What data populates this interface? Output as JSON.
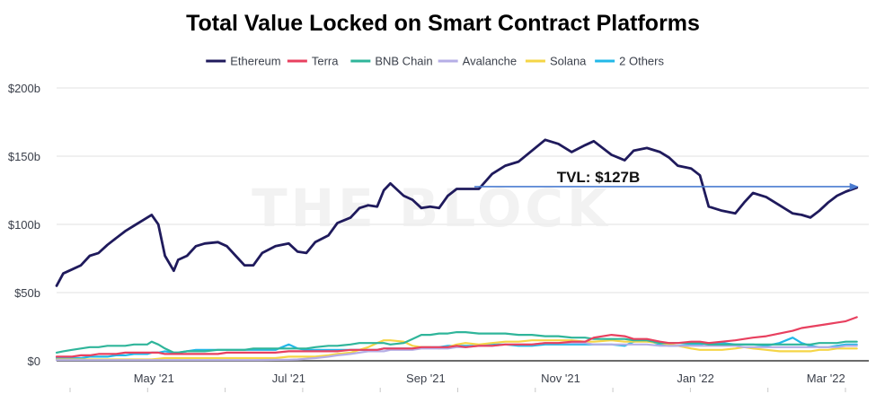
{
  "chart_data": {
    "type": "line",
    "title": "Total Value Locked on Smart Contract Platforms",
    "xlabel": "",
    "ylabel": "",
    "x_range": [
      "2021-04-01",
      "2022-04-03"
    ],
    "ylim": [
      0,
      200
    ],
    "y_ticks": [
      {
        "value": 0,
        "label": "$0"
      },
      {
        "value": 50,
        "label": "$50b"
      },
      {
        "value": 100,
        "label": "$100b"
      },
      {
        "value": 150,
        "label": "$150b"
      },
      {
        "value": 200,
        "label": "$200b"
      }
    ],
    "x_ticks": [
      {
        "date": "2021-05-15",
        "label": "May '21"
      },
      {
        "date": "2021-07-15",
        "label": "Jul '21"
      },
      {
        "date": "2021-09-15",
        "label": "Sep '21"
      },
      {
        "date": "2021-11-15",
        "label": "Nov '21"
      },
      {
        "date": "2022-01-15",
        "label": "Jan '22"
      },
      {
        "date": "2022-03-15",
        "label": "Mar '22"
      }
    ],
    "grid": true,
    "legend_position": "top-center",
    "watermark": "THE BLOCK",
    "annotation": {
      "text": "TVL: $127B",
      "value": 127,
      "from_date": "2021-10-07",
      "to_date": "2022-03-29",
      "color": "#4a7bd0"
    },
    "x_days": [
      0,
      3,
      7,
      11,
      15,
      19,
      23,
      27,
      31,
      35,
      39,
      41,
      43,
      46,
      49,
      53,
      55,
      59,
      63,
      67,
      73,
      77,
      81,
      85,
      89,
      93,
      99,
      105,
      109,
      113,
      117,
      123,
      127,
      133,
      137,
      141,
      145,
      148,
      151,
      157,
      161,
      165,
      169,
      173,
      177,
      181,
      185,
      191,
      197,
      203,
      209,
      215,
      221,
      227,
      233,
      239,
      243,
      251,
      257,
      261,
      267,
      273,
      277,
      281,
      287,
      291,
      295,
      301,
      307,
      311,
      315,
      321,
      327,
      333,
      337,
      341,
      345,
      349,
      353,
      357,
      362
    ],
    "series": [
      {
        "name": "Ethereum",
        "color": "#1f1a5c",
        "values": [
          55,
          64,
          67,
          70,
          77,
          79,
          85,
          90,
          95,
          99,
          103,
          105,
          107,
          100,
          77,
          66,
          74,
          77,
          84,
          86,
          87,
          84,
          77,
          70,
          70,
          79,
          84,
          86,
          80,
          79,
          87,
          92,
          101,
          105,
          112,
          114,
          113,
          125,
          130,
          121,
          118,
          112,
          113,
          112,
          121,
          126,
          126,
          126,
          137,
          143,
          146,
          154,
          162,
          159,
          153,
          158,
          161,
          151,
          147,
          154,
          156,
          153,
          149,
          143,
          141,
          136,
          113,
          110,
          108,
          116,
          123,
          120,
          114,
          108,
          107,
          105,
          110,
          116,
          121,
          124,
          127
        ]
      },
      {
        "name": "Terra",
        "color": "#e8405f",
        "values": [
          3,
          3,
          3,
          4,
          4,
          5,
          5,
          5,
          6,
          6,
          6,
          6,
          6,
          6,
          5,
          5,
          5,
          5,
          5,
          5,
          5,
          6,
          6,
          6,
          6,
          6,
          6,
          7,
          7,
          7,
          7,
          7,
          7,
          8,
          8,
          8,
          8,
          9,
          9,
          9,
          9,
          10,
          10,
          10,
          10,
          11,
          10,
          11,
          11,
          12,
          12,
          12,
          13,
          13,
          14,
          14,
          17,
          19,
          18,
          16,
          16,
          14,
          13,
          13,
          14,
          14,
          13,
          14,
          15,
          16,
          17,
          18,
          20,
          22,
          24,
          25,
          26,
          27,
          28,
          29,
          32
        ]
      },
      {
        "name": "BNB Chain",
        "color": "#2fb59a",
        "values": [
          6,
          7,
          8,
          9,
          10,
          10,
          11,
          11,
          11,
          12,
          12,
          12,
          14,
          12,
          9,
          6,
          6,
          7,
          7,
          7,
          8,
          8,
          8,
          8,
          9,
          9,
          9,
          9,
          9,
          9,
          10,
          11,
          11,
          12,
          13,
          13,
          13,
          13,
          12,
          13,
          16,
          19,
          19,
          20,
          20,
          21,
          21,
          20,
          20,
          20,
          19,
          19,
          18,
          18,
          17,
          17,
          16,
          16,
          16,
          15,
          15,
          13,
          13,
          13,
          13,
          13,
          12,
          12,
          12,
          12,
          12,
          12,
          12,
          12,
          12,
          12,
          13,
          13,
          13,
          14,
          14
        ]
      },
      {
        "name": "Avalanche",
        "color": "#b5aee6",
        "values": [
          0.5,
          0.5,
          0.5,
          0.5,
          0.5,
          0.5,
          0.5,
          0.5,
          0.5,
          0.5,
          0.5,
          0.5,
          0.5,
          0.5,
          0.5,
          0.5,
          0.5,
          0.5,
          0.5,
          0.5,
          0.5,
          0.5,
          0.5,
          0.5,
          0.5,
          0.6,
          0.7,
          0.8,
          1,
          1.5,
          2,
          3,
          4,
          5,
          6,
          7,
          7,
          7,
          8,
          8,
          8,
          9,
          9,
          9,
          9,
          10,
          10,
          11,
          11,
          12,
          12,
          12,
          13,
          13,
          13,
          13,
          12,
          12,
          12,
          12,
          12,
          11,
          11,
          11,
          11,
          11,
          11,
          11,
          11,
          10,
          10,
          10,
          10,
          10,
          10,
          10,
          10,
          10,
          10,
          11,
          11
        ]
      },
      {
        "name": "Solana",
        "color": "#f5d546",
        "values": [
          1,
          1,
          1,
          1,
          1,
          1,
          1,
          1,
          1,
          1,
          1,
          1,
          1,
          1.5,
          2,
          2,
          2,
          2,
          2,
          2,
          2,
          2,
          2,
          2,
          2,
          2,
          2,
          3,
          3,
          3,
          3,
          4,
          5,
          6,
          8,
          10,
          13,
          15,
          15,
          14,
          11,
          10,
          10,
          9,
          10,
          12,
          13,
          12,
          13,
          14,
          14,
          15,
          15,
          15,
          15,
          14,
          14,
          15,
          14,
          14,
          14,
          13,
          12,
          11,
          9,
          8,
          8,
          8,
          9,
          10,
          9,
          8,
          7,
          7,
          7,
          7,
          8,
          8,
          9,
          9,
          9
        ]
      },
      {
        "name": "2 Others",
        "color": "#22b8e8",
        "values": [
          2,
          2,
          2,
          2,
          3,
          3,
          3,
          4,
          4,
          5,
          5,
          5,
          6,
          6,
          7,
          6,
          6,
          7,
          8,
          8,
          8,
          8,
          8,
          8,
          8,
          8,
          8,
          12,
          9,
          8,
          8,
          8,
          8,
          8,
          8,
          8,
          8,
          9,
          9,
          9,
          9,
          10,
          10,
          10,
          11,
          11,
          11,
          11,
          12,
          12,
          11,
          11,
          12,
          12,
          12,
          12,
          12,
          12,
          11,
          14,
          15,
          12,
          11,
          11,
          12,
          12,
          13,
          13,
          12,
          12,
          12,
          11,
          13,
          17,
          13,
          11,
          10,
          10,
          11,
          12,
          12
        ]
      }
    ]
  }
}
